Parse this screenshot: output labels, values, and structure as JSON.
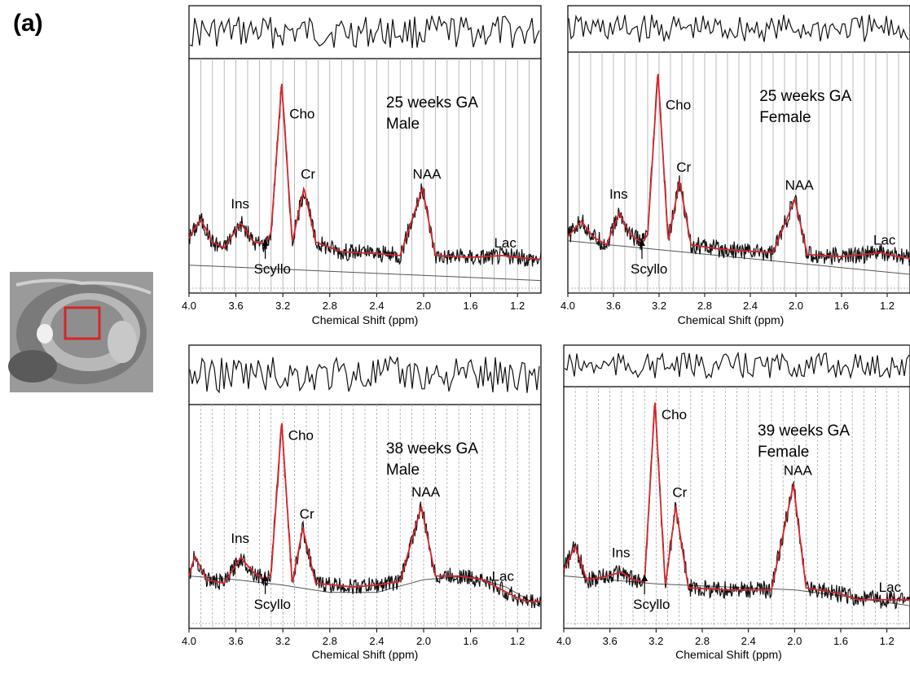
{
  "figure": {
    "panel_label": "(a)",
    "thumbnail_icon": "fetal-brain-mri-thumbnail",
    "colors": {
      "fit": "#d6262a",
      "data": "#111111",
      "baseline": "#555555",
      "roi": "#d6262a"
    }
  },
  "chart_data": [
    {
      "type": "line",
      "xlabel": "Chemical Shift (ppm)",
      "x_ticks": [
        "4.0",
        "3.6",
        "3.2",
        "2.8",
        "2.4",
        "2.0",
        "1.6",
        "1.2"
      ],
      "xlim": [
        4.0,
        1.0
      ],
      "x_reversed": true,
      "annotation": [
        "25 weeks GA",
        "Male"
      ],
      "series": [
        {
          "values": [
            [
              4.0,
              0.14
            ],
            [
              3.9,
              0.24
            ],
            [
              3.8,
              0.12
            ],
            [
              3.7,
              0.09
            ],
            [
              3.56,
              0.22
            ],
            [
              3.45,
              0.12
            ],
            [
              3.35,
              0.11
            ],
            [
              3.3,
              0.17
            ],
            [
              3.21,
              0.95
            ],
            [
              3.12,
              0.12
            ],
            [
              3.02,
              0.4
            ],
            [
              2.92,
              0.12
            ],
            [
              2.7,
              0.07
            ],
            [
              2.4,
              0.06
            ],
            [
              2.2,
              0.05
            ],
            [
              2.01,
              0.4
            ],
            [
              1.9,
              0.05
            ],
            [
              1.6,
              0.04
            ],
            [
              1.33,
              0.05
            ],
            [
              1.2,
              0.04
            ],
            [
              1.0,
              0.03
            ]
          ]
        },
        {
          "values": [
            [
              4.0,
              0.0
            ],
            [
              1.0,
              -0.08
            ]
          ]
        }
      ],
      "peaks": [
        {
          "label": "Cho",
          "ppm": 3.2
        },
        {
          "label": "Cr",
          "ppm": 3.02
        },
        {
          "label": "NAA",
          "ppm": 2.01
        },
        {
          "label": "Ins",
          "ppm": 3.56
        },
        {
          "label": "Scyllo",
          "ppm": 3.35
        },
        {
          "label": "Lac",
          "ppm": 1.33
        }
      ]
    },
    {
      "type": "line",
      "xlabel": "Chemical Shift (ppm)",
      "x_ticks": [
        "4.0",
        "3.6",
        "3.2",
        "2.8",
        "2.4",
        "2.0",
        "1.6",
        "1.2"
      ],
      "xlim": [
        4.0,
        1.0
      ],
      "x_reversed": true,
      "annotation": [
        "25 weeks GA",
        "Female"
      ],
      "series": [
        {
          "values": [
            [
              4.0,
              0.14
            ],
            [
              3.88,
              0.22
            ],
            [
              3.78,
              0.14
            ],
            [
              3.66,
              0.1
            ],
            [
              3.55,
              0.26
            ],
            [
              3.45,
              0.15
            ],
            [
              3.35,
              0.11
            ],
            [
              3.3,
              0.15
            ],
            [
              3.21,
              0.97
            ],
            [
              3.12,
              0.12
            ],
            [
              3.02,
              0.42
            ],
            [
              2.92,
              0.1
            ],
            [
              2.7,
              0.08
            ],
            [
              2.5,
              0.07
            ],
            [
              2.2,
              0.06
            ],
            [
              2.01,
              0.33
            ],
            [
              1.9,
              0.05
            ],
            [
              1.6,
              0.04
            ],
            [
              1.25,
              0.06
            ],
            [
              1.2,
              0.05
            ],
            [
              1.0,
              0.03
            ]
          ]
        },
        {
          "values": [
            [
              4.0,
              0.12
            ],
            [
              1.0,
              -0.05
            ]
          ]
        }
      ],
      "peaks": [
        {
          "label": "Cho",
          "ppm": 3.2
        },
        {
          "label": "Cr",
          "ppm": 3.02
        },
        {
          "label": "NAA",
          "ppm": 2.01
        },
        {
          "label": "Ins",
          "ppm": 3.55
        },
        {
          "label": "Scyllo",
          "ppm": 3.35
        },
        {
          "label": "Lac",
          "ppm": 1.25
        }
      ]
    },
    {
      "type": "line",
      "xlabel": "Chemical Shift (ppm)",
      "x_ticks": [
        "4.0",
        "3.6",
        "3.2",
        "2.8",
        "2.4",
        "2.0",
        "1.6",
        "1.2"
      ],
      "xlim": [
        4.0,
        1.0
      ],
      "x_reversed": true,
      "annotation": [
        "38 weeks GA",
        "Male"
      ],
      "series": [
        {
          "values": [
            [
              4.0,
              0.14
            ],
            [
              3.95,
              0.25
            ],
            [
              3.85,
              0.12
            ],
            [
              3.7,
              0.1
            ],
            [
              3.56,
              0.24
            ],
            [
              3.45,
              0.16
            ],
            [
              3.35,
              0.12
            ],
            [
              3.3,
              0.15
            ],
            [
              3.21,
              0.98
            ],
            [
              3.12,
              0.1
            ],
            [
              3.03,
              0.4
            ],
            [
              2.92,
              0.1
            ],
            [
              2.6,
              0.08
            ],
            [
              2.4,
              0.09
            ],
            [
              2.2,
              0.11
            ],
            [
              2.02,
              0.52
            ],
            [
              1.9,
              0.14
            ],
            [
              1.7,
              0.14
            ],
            [
              1.5,
              0.12
            ],
            [
              1.35,
              0.07
            ],
            [
              1.2,
              0.02
            ],
            [
              1.0,
              -0.03
            ]
          ]
        },
        {
          "values": [
            [
              4.0,
              0.14
            ],
            [
              3.6,
              0.12
            ],
            [
              3.2,
              0.09
            ],
            [
              2.8,
              0.05
            ],
            [
              2.4,
              0.05
            ],
            [
              2.0,
              0.12
            ],
            [
              1.6,
              0.14
            ],
            [
              1.3,
              0.08
            ],
            [
              1.0,
              -0.03
            ]
          ]
        }
      ],
      "peaks": [
        {
          "label": "Cho",
          "ppm": 3.21
        },
        {
          "label": "Cr",
          "ppm": 3.03
        },
        {
          "label": "NAA",
          "ppm": 2.02
        },
        {
          "label": "Ins",
          "ppm": 3.56
        },
        {
          "label": "Scyllo",
          "ppm": 3.35
        },
        {
          "label": "Lac",
          "ppm": 1.35
        }
      ]
    },
    {
      "type": "line",
      "xlabel": "Chemical Shift (ppm)",
      "x_ticks": [
        "4.0",
        "3.6",
        "3.2",
        "2.8",
        "2.4",
        "2.0",
        "1.6",
        "1.2"
      ],
      "xlim": [
        4.0,
        1.0
      ],
      "x_reversed": true,
      "annotation": [
        "39 weeks GA",
        "Female"
      ],
      "series": [
        {
          "values": [
            [
              4.0,
              0.15
            ],
            [
              3.9,
              0.27
            ],
            [
              3.8,
              0.1
            ],
            [
              3.62,
              0.12
            ],
            [
              3.5,
              0.14
            ],
            [
              3.4,
              0.1
            ],
            [
              3.3,
              0.09
            ],
            [
              3.21,
              1.0
            ],
            [
              3.12,
              0.07
            ],
            [
              3.03,
              0.47
            ],
            [
              2.92,
              0.06
            ],
            [
              2.6,
              0.05
            ],
            [
              2.3,
              0.05
            ],
            [
              2.2,
              0.05
            ],
            [
              2.01,
              0.58
            ],
            [
              1.9,
              0.06
            ],
            [
              1.6,
              0.03
            ],
            [
              1.4,
              -0.01
            ],
            [
              1.2,
              -0.03
            ],
            [
              1.0,
              -0.03
            ]
          ]
        },
        {
          "values": [
            [
              4.0,
              0.12
            ],
            [
              3.6,
              0.1
            ],
            [
              3.2,
              0.08
            ],
            [
              2.8,
              0.07
            ],
            [
              2.4,
              0.06
            ],
            [
              2.0,
              0.05
            ],
            [
              1.6,
              0.02
            ],
            [
              1.0,
              -0.03
            ]
          ]
        }
      ],
      "peaks": [
        {
          "label": "Cho",
          "ppm": 3.21
        },
        {
          "label": "Cr",
          "ppm": 3.03
        },
        {
          "label": "NAA",
          "ppm": 2.01
        },
        {
          "label": "Ins",
          "ppm": 3.5
        },
        {
          "label": "Scyllo",
          "ppm": 3.3
        },
        {
          "label": "Lac",
          "ppm": 1.2
        }
      ]
    }
  ]
}
